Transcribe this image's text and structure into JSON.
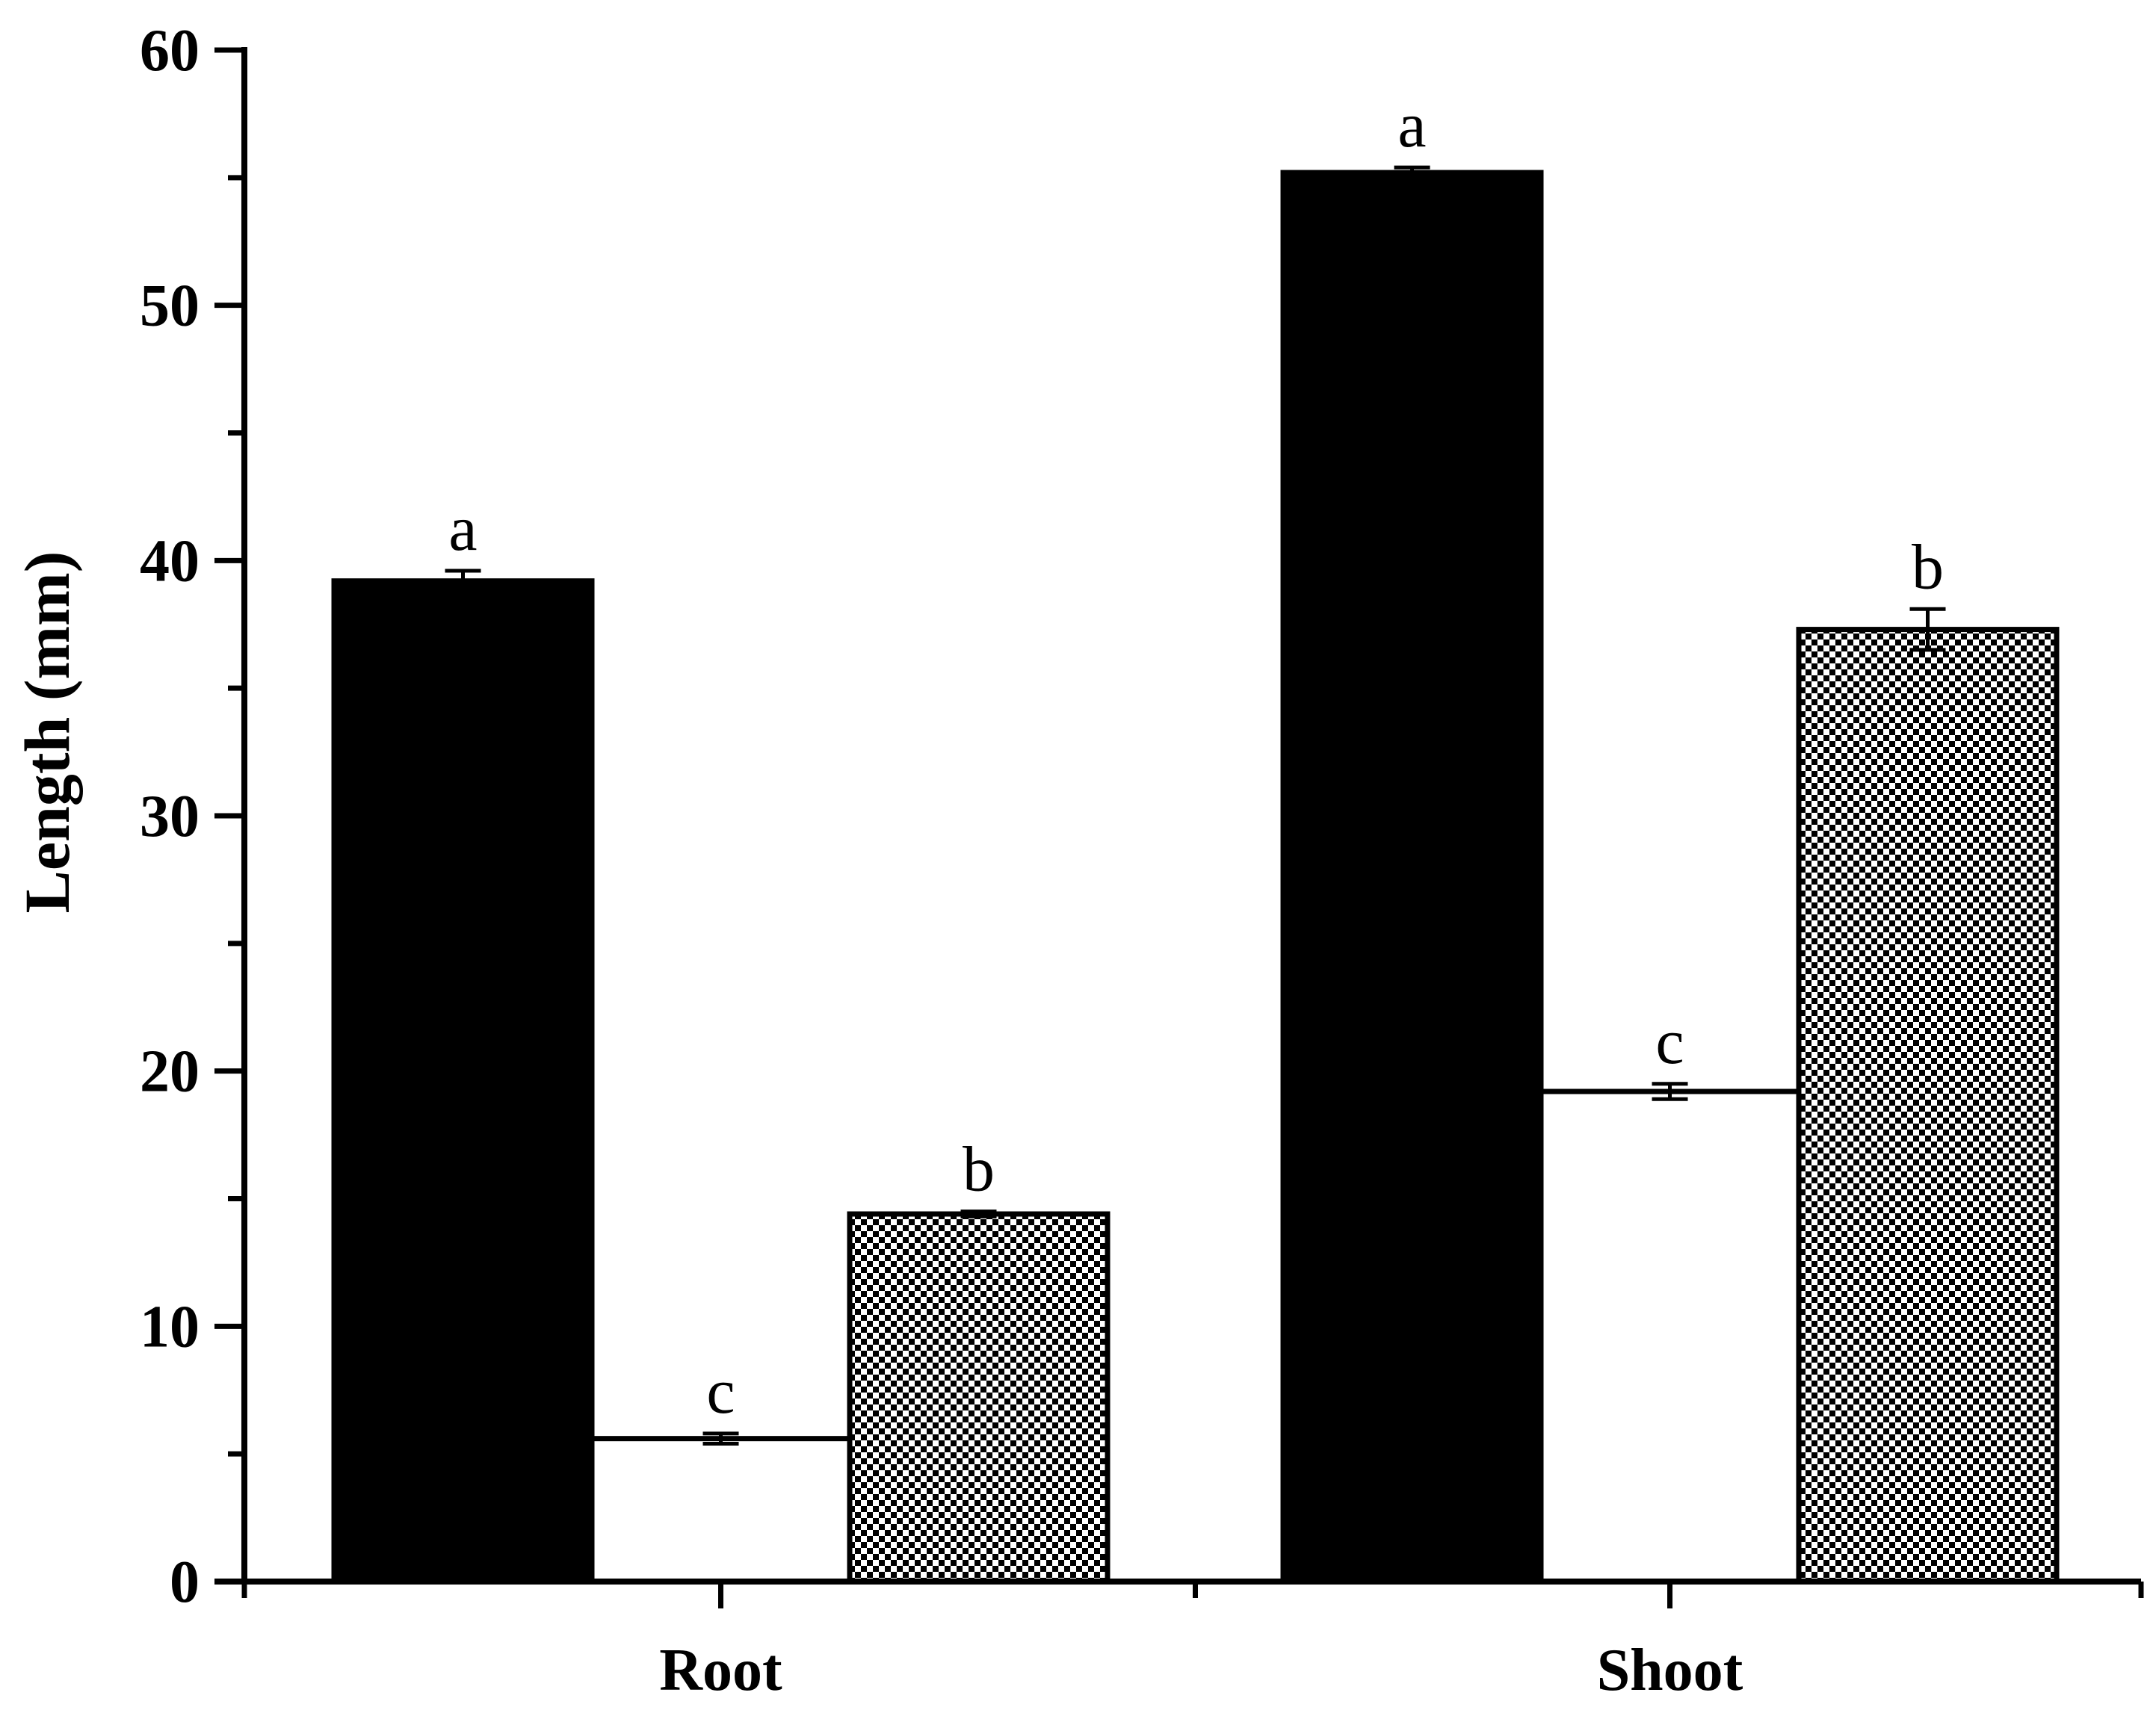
{
  "chart_data": {
    "type": "bar",
    "title": "",
    "xlabel": "",
    "ylabel": "Length (mm)",
    "ylim": [
      0,
      60
    ],
    "yticks": [
      "0",
      "10",
      "20",
      "30",
      "40",
      "50",
      "60"
    ],
    "categories": [
      "Root",
      "Shoot"
    ],
    "grid": false,
    "legend": "none",
    "series": [
      {
        "fill": "solid-black",
        "color": "#000000",
        "values": [
          39.2,
          55.2
        ],
        "errors": [
          0.4,
          0.2
        ],
        "significance": [
          "a",
          "a"
        ]
      },
      {
        "fill": "white",
        "color": "#ffffff",
        "values": [
          5.6,
          19.2
        ],
        "errors": [
          0.2,
          0.3
        ],
        "significance": [
          "c",
          "c"
        ]
      },
      {
        "fill": "checkered",
        "color": "#000000",
        "values": [
          14.4,
          37.3
        ],
        "errors": [
          0.1,
          0.8
        ],
        "significance": [
          "b",
          "b"
        ]
      }
    ]
  }
}
